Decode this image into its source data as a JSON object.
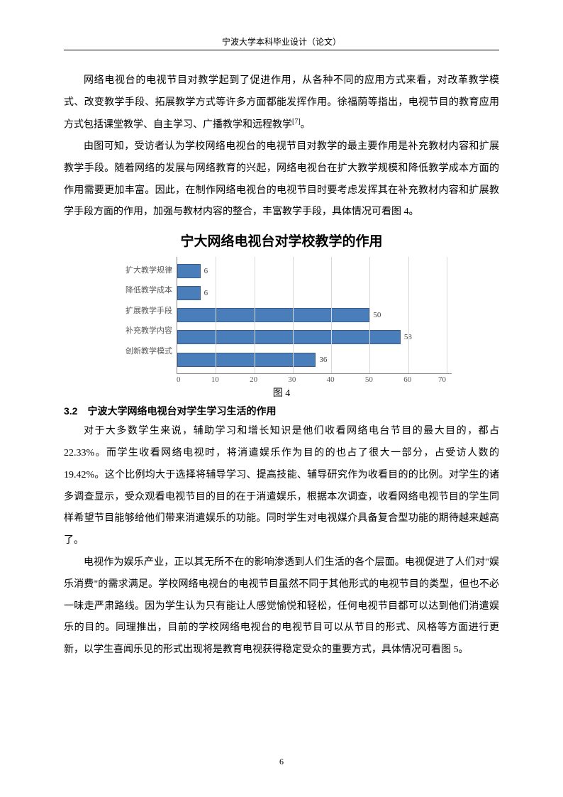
{
  "header": "宁波大学本科毕业设计（论文）",
  "para1": "网络电视台的电视节目对教学起到了促进作用，从各种不同的应用方式来看，对改革教学模式、改变教学手段、拓展教学方式等许多方面都能发挥作用。徐福荫等指出，电视节目的教育应用方式包括课堂教学、自主学习、广播教学和远程教学",
  "para1_ref": "[7]",
  "para1_end": "。",
  "para2": "由图可知，受访者认为学校网络电视台的电视节目对教学的最主要作用是补充教材内容和扩展教学手段。随着网络的发展与网络教育的兴起，网络电视台在扩大教学规模和降低教学成本方面的作用需要更加丰富。因此，在制作网络电视台的电视节目时要考虑发挥其在补充教材内容和扩展教学手段方面的作用，加强与教材内容的整合，丰富教学手段，具体情况可看图 4。",
  "chart": {
    "type": "bar",
    "title": "宁大网络电视台对学校教学的作用",
    "categories": [
      "扩大教学规律",
      "降低教学成本",
      "扩展教学手段",
      "补充教学内容",
      "创新教学模式"
    ],
    "values": [
      6,
      6,
      50,
      58,
      36
    ],
    "xmax": 70,
    "xtick_step": 10,
    "xticks": [
      0,
      10,
      20,
      30,
      40,
      50,
      60,
      70
    ],
    "bar_color": "#4a7ebb",
    "bar_border": "#385d8a",
    "grid_color": "#d9d9d9",
    "axis_color": "#888888",
    "label_color": "#595959",
    "title_fontsize": 19,
    "label_fontsize": 11,
    "caption": "图 4"
  },
  "section_head": "3.2　宁波大学网络电视台对学生学习生活的作用",
  "para3": "对于大多数学生来说，辅助学习和增长知识是他们收看网络电台节目的最大目的，都占 22.33%。而学生收看网络电视时，将消遣娱乐作为目的的也占了很大一部分，占受访人数的 19.42%。这个比例均大于选择将辅导学习、提高技能、辅导研究作为收看目的的比例。对学生的诸多调查显示，受众观看电视节目的目的在于消遣娱乐，根据本次调查，收看网络电视节目的学生同样希望节目能够给他们带来消遣娱乐的功能。同时学生对电视媒介具备复合型功能的期待越来越高了。",
  "para4": "电视作为娱乐产业，正以其无所不在的影响渗透到人们生活的各个层面。电视促进了人们对\"娱乐消费\"的需求满足。学校网络电视台的电视节目虽然不同于其他形式的电视节目的类型，但也不必一味走严肃路线。因为学生认为只有能让人感觉愉悦和轻松，任何电视节目都可以达到他们消遣娱乐的目的。同理推出，目前的学校网络电视台的电视节目可以从节目的形式、风格等方面进行更新，以学生喜闻乐见的形式出现将是教育电视获得稳定受众的重要方式，具体情况可看图 5。",
  "page_num": "6"
}
